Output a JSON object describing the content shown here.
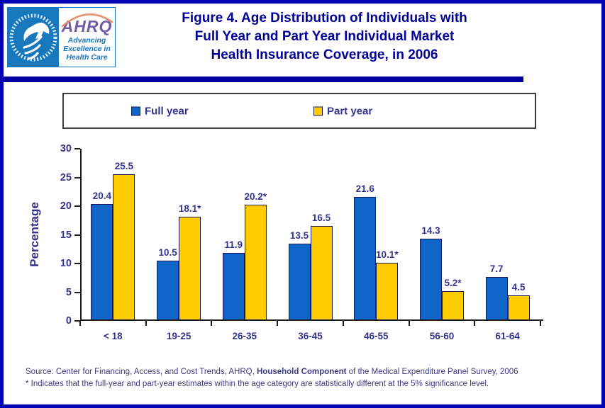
{
  "header": {
    "title_lines": [
      "Figure 4. Age Distribution of Individuals with",
      "Full Year and Part Year Individual Market",
      "Health Insurance Coverage, in 2006"
    ],
    "logo": {
      "ahrq_acronym": "AHRQ",
      "tagline_lines": [
        "Advancing",
        "Excellence in",
        "Health Care"
      ]
    }
  },
  "chart_data": {
    "type": "bar",
    "title": "Age Distribution of Individuals with Full Year and Part Year Individual Market Health Insurance Coverage, in 2006",
    "xlabel": "",
    "ylabel": "Percentage",
    "ylim": [
      0,
      30
    ],
    "yticks": [
      0,
      5,
      10,
      15,
      20,
      25,
      30
    ],
    "grid": false,
    "legend_position": "top",
    "categories": [
      "< 18",
      "19-25",
      "26-35",
      "36-45",
      "46-55",
      "56-60",
      "61-64"
    ],
    "series": [
      {
        "name": "Full year",
        "color": "#1164C8",
        "values": [
          20.4,
          10.5,
          11.9,
          13.5,
          21.6,
          14.3,
          7.7
        ],
        "labels": [
          "20.4",
          "10.5",
          "11.9",
          "13.5",
          "21.6",
          "14.3",
          "7.7"
        ]
      },
      {
        "name": "Part year",
        "color": "#FFCC00",
        "values": [
          25.5,
          18.1,
          20.2,
          16.5,
          10.1,
          5.2,
          4.5
        ],
        "labels": [
          "25.5",
          "18.1*",
          "20.2*",
          "16.5",
          "10.1*",
          "5.2*",
          "4.5"
        ]
      }
    ]
  },
  "footer": {
    "source_prefix": "Source: Center for Financing, Access, and Cost Trends, AHRQ, ",
    "source_emphasis": "Household Component",
    "source_suffix": " of the Medical Expenditure Panel Survey, 2006",
    "footnote": "* Indicates that the full-year and part-year estimates within the age category are statistically different at the 5% significance level."
  },
  "colors": {
    "frame_border": "#0000B4",
    "title_blue": "#000099",
    "rule_blue": "#0000A0",
    "bar_blue": "#1164C8",
    "bar_yellow": "#FFCC00",
    "label_navy": "#333391",
    "hhs_blue": "#1878BE",
    "ahrq_purple": "#6F5DA8",
    "arc_orange": "#E8906B"
  }
}
